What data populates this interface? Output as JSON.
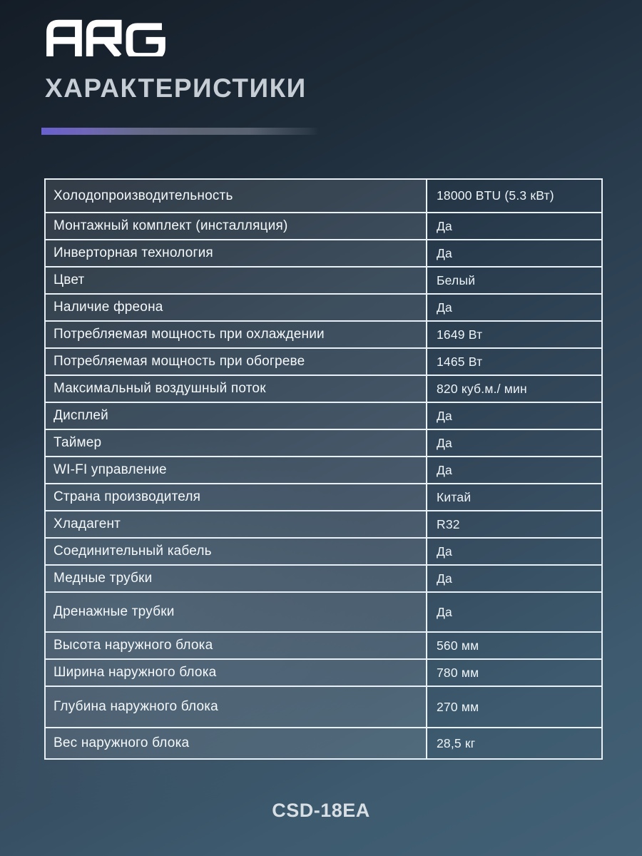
{
  "brand": {
    "name": "ARG"
  },
  "header": {
    "title": "ХАРАКТЕРИСТИКИ"
  },
  "footer": {
    "model": "CSD-18EA"
  },
  "colors": {
    "accent_purple": "#6a60cf",
    "table_border": "#e9f1f6",
    "background_top": "#141d27",
    "background_bottom": "#436177",
    "label_cell_overlay": "rgba(255,255,255,0.10)"
  },
  "specs": {
    "rows": [
      {
        "label": "Холодопроизводительность",
        "value": "18000 BTU (5.3 кВт)"
      },
      {
        "label": "Монтажный комплект (инсталляция)",
        "value": "Да"
      },
      {
        "label": "Инверторная технология",
        "value": "Да"
      },
      {
        "label": "Цвет",
        "value": "Белый"
      },
      {
        "label": "Наличие фреона",
        "value": "Да"
      },
      {
        "label": "Потребляемая мощность при охлаждении",
        "value": "1649 Вт"
      },
      {
        "label": "Потребляемая мощность при обогреве",
        "value": "1465 Вт"
      },
      {
        "label": "Максимальный воздушный поток",
        "value": "820 куб.м./ мин"
      },
      {
        "label": "Дисплей",
        "value": "Да"
      },
      {
        "label": "Таймер",
        "value": "Да"
      },
      {
        "label": "WI-FI управление",
        "value": "Да"
      },
      {
        "label": "Страна производителя",
        "value": "Китай"
      },
      {
        "label": "Хладагент",
        "value": "R32"
      },
      {
        "label": "Соединительный кабель",
        "value": "Да"
      },
      {
        "label": "Медные трубки",
        "value": "Да"
      },
      {
        "label": "Дренажные трубки",
        "value": "Да"
      },
      {
        "label": "Высота наружного блока",
        "value": "560 мм"
      },
      {
        "label": "Ширина наружного блока",
        "value": "780 мм"
      },
      {
        "label": "Глубина наружного блока",
        "value": "270 мм"
      },
      {
        "label": "Вес наружного блока",
        "value": "28,5 кг"
      }
    ]
  }
}
